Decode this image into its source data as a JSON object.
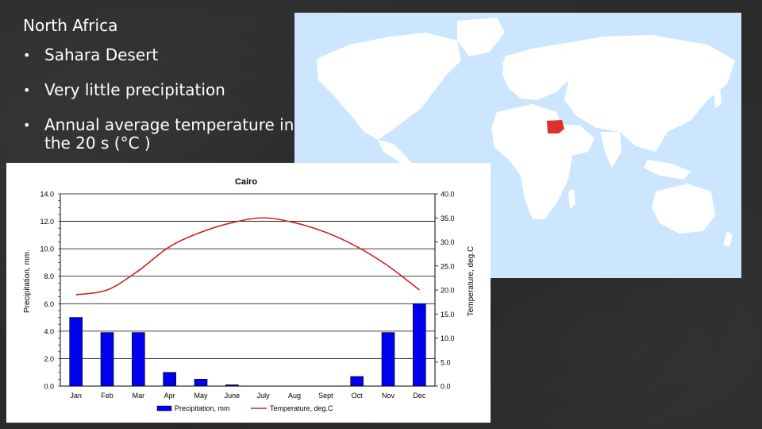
{
  "slide": {
    "title": "North Africa",
    "bullets": [
      "Sahara Desert",
      "Very little precipitation",
      "Annual average temperature in the 20 s (°C )"
    ]
  },
  "map": {
    "land_color": "#ffffff",
    "water_color": "#cce6ff",
    "highlight_color": "#e0302a"
  },
  "chart_data": {
    "type": "bar",
    "title": "Cairo",
    "categories": [
      "Jan",
      "Feb",
      "Mar",
      "Apr",
      "May",
      "June",
      "July",
      "Aug",
      "Sept",
      "Oct",
      "Nov",
      "Dec"
    ],
    "series": [
      {
        "name": "Precipitation, mm",
        "kind": "bar",
        "axis": "left",
        "color": "#0000ee",
        "values": [
          5.0,
          3.9,
          3.9,
          1.0,
          0.5,
          0.1,
          0,
          0,
          0,
          0.7,
          3.9,
          6.0
        ]
      },
      {
        "name": "Temperature, deg.C",
        "kind": "line",
        "axis": "right",
        "color": "#cc2222",
        "values": [
          19.0,
          20.0,
          24.0,
          29.0,
          32.0,
          34.0,
          35.0,
          34.0,
          32.0,
          29.0,
          25.0,
          20.0
        ]
      }
    ],
    "ylabel": "Precipitation, mm.",
    "ylim": [
      0,
      14
    ],
    "yticks": [
      "0.0",
      "2.0",
      "4.0",
      "6.0",
      "8.0",
      "10.0",
      "12.0",
      "14.0"
    ],
    "y2label": "Temperature, deg.C",
    "y2lim": [
      0,
      40
    ],
    "y2ticks": [
      "0.0",
      "5.0",
      "10.0",
      "15.0",
      "20.0",
      "25.0",
      "30.0",
      "35.0",
      "40.0"
    ],
    "legend": "bottom",
    "grid": true
  }
}
